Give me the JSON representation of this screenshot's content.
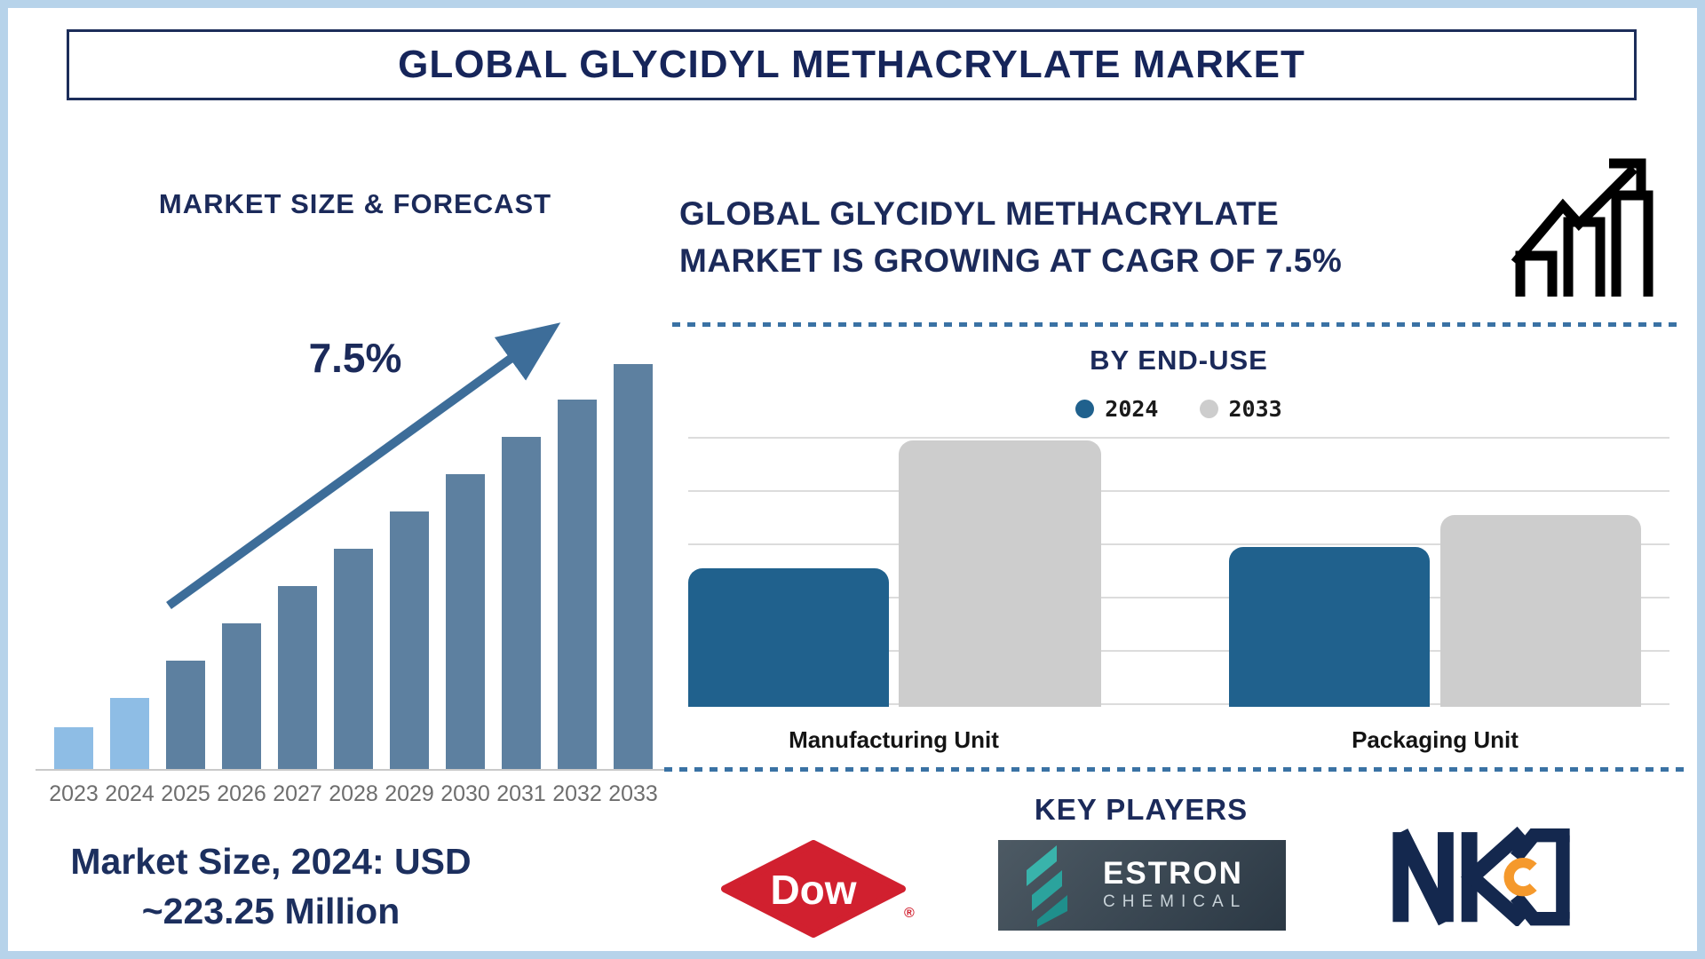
{
  "page": {
    "title": "GLOBAL GLYCIDYL METHACRYLATE MARKET"
  },
  "left_panel": {
    "heading": "MARKET SIZE & FORECAST",
    "cagr_label": "7.5%",
    "market_size_line1": "Market Size, 2024: USD",
    "market_size_line2": "~223.25 Million"
  },
  "right_panel": {
    "headline_line1": "GLOBAL GLYCIDYL METHACRYLATE",
    "headline_line2": "MARKET IS GROWING AT CAGR OF 7.5%",
    "growth_icon": "bar-chart-with-rising-arrow",
    "end_use": {
      "heading": "BY END-USE"
    },
    "key_players": {
      "heading": "KEY PLAYERS",
      "players": [
        "Dow",
        "ESTRON CHEMICAL",
        "NKC"
      ]
    },
    "dow_registered_mark": "®",
    "estron_name": "ESTRON",
    "estron_sub": "CHEMICAL"
  },
  "colors": {
    "navy_text": "#1b2a5a",
    "frame_blue": "#b7d3ea",
    "light_blue_bar": "#8ebde5",
    "steel_blue_bar": "#5d80a0",
    "arrow_blue": "#3d6d99",
    "end_use_blue": "#20618d",
    "end_use_gray": "#cdcdcd",
    "dashed_divider": "#3a72a4",
    "year_gray": "#6e6e6e",
    "dow_red": "#d1202f",
    "estron_teal": "#2fa9a3",
    "nkc_navy": "#14284e",
    "nkc_orange": "#f5992c"
  },
  "chart_data": [
    {
      "type": "bar",
      "title": "MARKET SIZE & FORECAST",
      "categories": [
        "2023",
        "2024",
        "2025",
        "2026",
        "2027",
        "2028",
        "2029",
        "2030",
        "2031",
        "2032",
        "2033"
      ],
      "values": [
        49,
        82,
        124,
        166,
        208,
        250,
        292,
        334,
        376,
        418,
        458
      ],
      "value_note": "stylized bar heights in px, no y-axis shown; market size 2024 = USD ~223.25 Million, CAGR 7.5%",
      "bar_colors": [
        "#8ebde5",
        "#8ebde5",
        "#5d80a0",
        "#5d80a0",
        "#5d80a0",
        "#5d80a0",
        "#5d80a0",
        "#5d80a0",
        "#5d80a0",
        "#5d80a0",
        "#5d80a0"
      ],
      "annotation": "7.5%",
      "xlabel": "",
      "ylabel": "",
      "grid": false,
      "legend_position": "none"
    },
    {
      "type": "bar",
      "title": "BY END-USE",
      "categories": [
        "Manufacturing Unit",
        "Packaging Unit"
      ],
      "series": [
        {
          "name": "2024",
          "color": "#20618d",
          "values": [
            2.6,
            3.0
          ]
        },
        {
          "name": "2033",
          "color": "#cdcdcd",
          "values": [
            5.0,
            3.6
          ]
        }
      ],
      "value_note": "units = horizontal gridline steps (no y-axis labels shown)",
      "ylim": [
        0,
        5.1
      ],
      "grid": true,
      "legend_position": "top"
    }
  ]
}
